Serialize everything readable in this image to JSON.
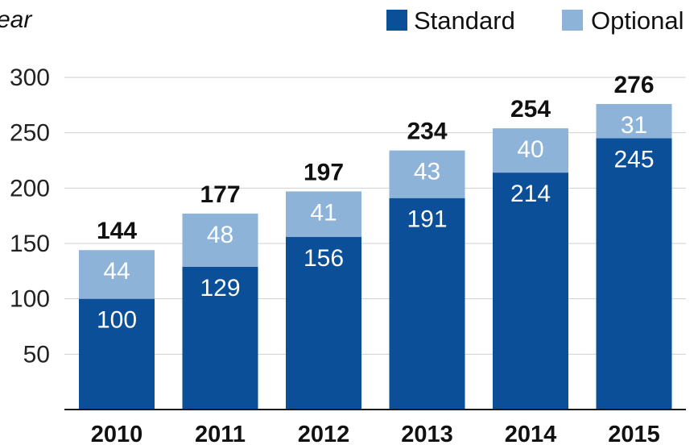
{
  "corner_label": "ear",
  "chart_data": {
    "type": "bar",
    "stacked": true,
    "categories": [
      "2010",
      "2011",
      "2012",
      "2013",
      "2014",
      "2015"
    ],
    "series": [
      {
        "name": "Standard",
        "color": "#0b4f98",
        "values": [
          100,
          129,
          156,
          191,
          214,
          245
        ]
      },
      {
        "name": "Optional",
        "color": "#8db3d8",
        "values": [
          44,
          48,
          41,
          43,
          40,
          31
        ]
      }
    ],
    "totals": [
      144,
      177,
      197,
      234,
      254,
      276
    ],
    "yticks": [
      50,
      100,
      150,
      200,
      250,
      300
    ],
    "ylim": [
      0,
      300
    ],
    "grid": true,
    "legend_position": "top-right"
  }
}
